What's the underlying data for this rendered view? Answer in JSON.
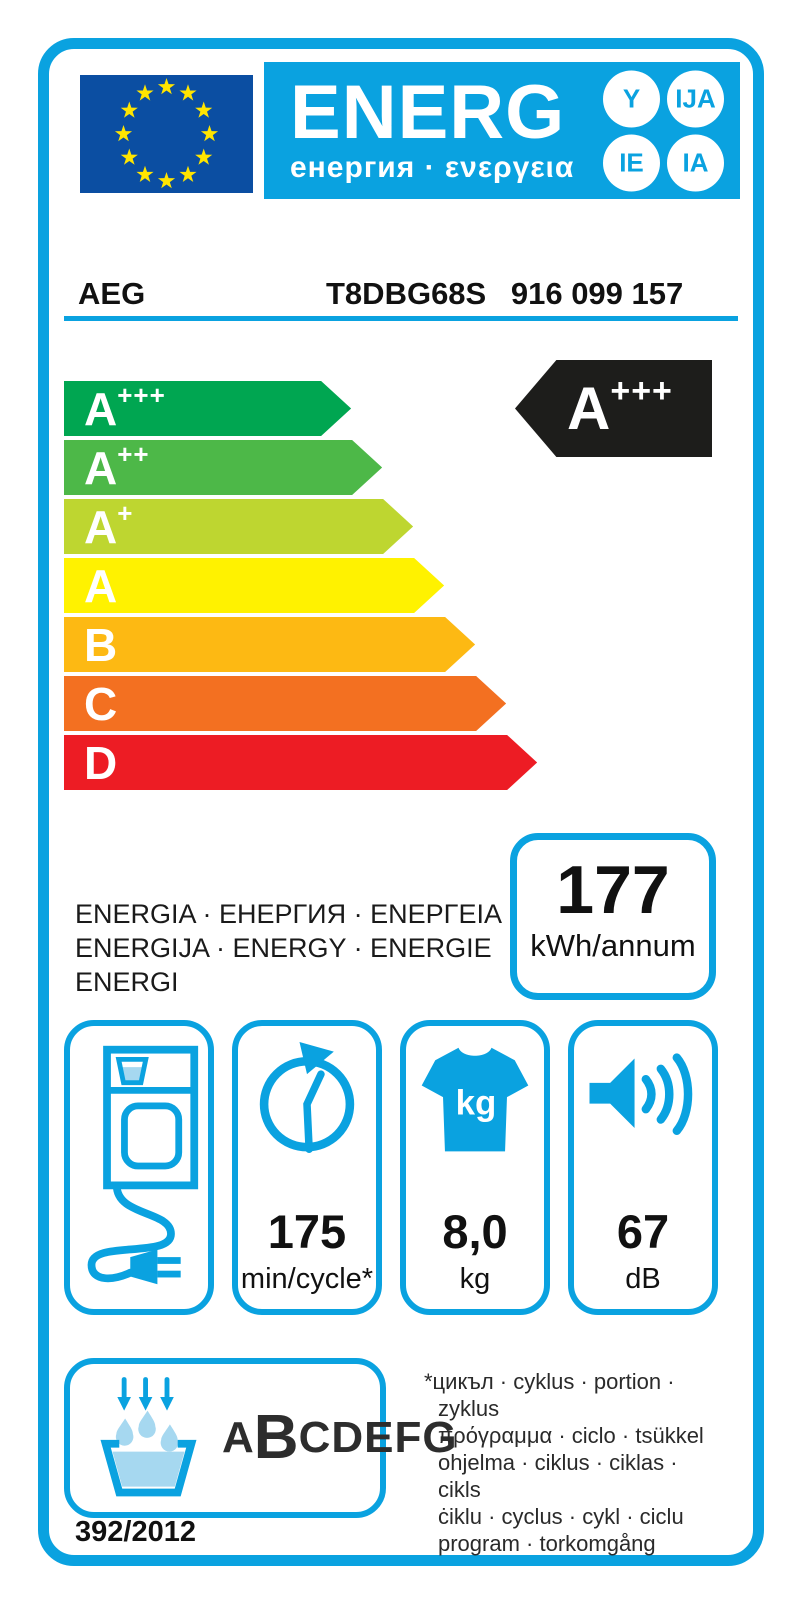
{
  "header": {
    "energ_word": "ENERG",
    "energ_sub": "енергия · ενεργεια",
    "suffixes": [
      "Y",
      "IJA",
      "IE",
      "IA"
    ]
  },
  "brand": {
    "name": "AEG",
    "model": "T8DBG68S",
    "code": "916 099 157"
  },
  "rating_scale": [
    {
      "letter": "A",
      "sup": "+++",
      "color": "#00a651",
      "width_pct": 42.6
    },
    {
      "letter": "A",
      "sup": "++",
      "color": "#4db848",
      "width_pct": 47.2
    },
    {
      "letter": "A",
      "sup": "+",
      "color": "#bed630",
      "width_pct": 51.8
    },
    {
      "letter": "A",
      "sup": "",
      "color": "#fff200",
      "width_pct": 56.4
    },
    {
      "letter": "B",
      "sup": "",
      "color": "#fdb913",
      "width_pct": 61.0
    },
    {
      "letter": "C",
      "sup": "",
      "color": "#f37021",
      "width_pct": 65.6
    },
    {
      "letter": "D",
      "sup": "",
      "color": "#ed1c24",
      "width_pct": 70.2
    }
  ],
  "current_rating": {
    "letter": "A",
    "sup": "+++"
  },
  "energy": {
    "value": "177",
    "unit": "kWh/annum"
  },
  "languages": {
    "line1": "ENERGIA · ЕНЕРГИЯ · ENEPΓEIA",
    "line2": "ENERGIJA · ENERGY · ENERGIE",
    "line3": "ENERGI"
  },
  "metrics": {
    "duration": {
      "value": "175",
      "unit": "min/cycle*"
    },
    "capacity": {
      "value": "8,0",
      "unit": "kg",
      "shirt_badge": "kg"
    },
    "noise": {
      "value": "67",
      "unit": "dB"
    }
  },
  "condensation": {
    "prefix": "A",
    "class": "B",
    "suffix": "CDEFG"
  },
  "footnote": {
    "lines": [
      "*цикъл · cyklus · portion · zyklus",
      "πρόγραμμα · ciclo · tsükkel",
      "ohjelma · ciklus · ciklas · cikls",
      "ċiklu · cyclus · cykl · ciclu",
      "program · torkomgång"
    ]
  },
  "regulation": "392/2012",
  "colors": {
    "cyan": "#0aa2e0",
    "eu_blue": "#0b4ea2",
    "star_yellow": "#ffe500",
    "water_blue": "#a6d8f0",
    "arrow_black": "#1d1d1b",
    "rating_a3": "#00a651",
    "rating_d": "#ed1c24"
  }
}
